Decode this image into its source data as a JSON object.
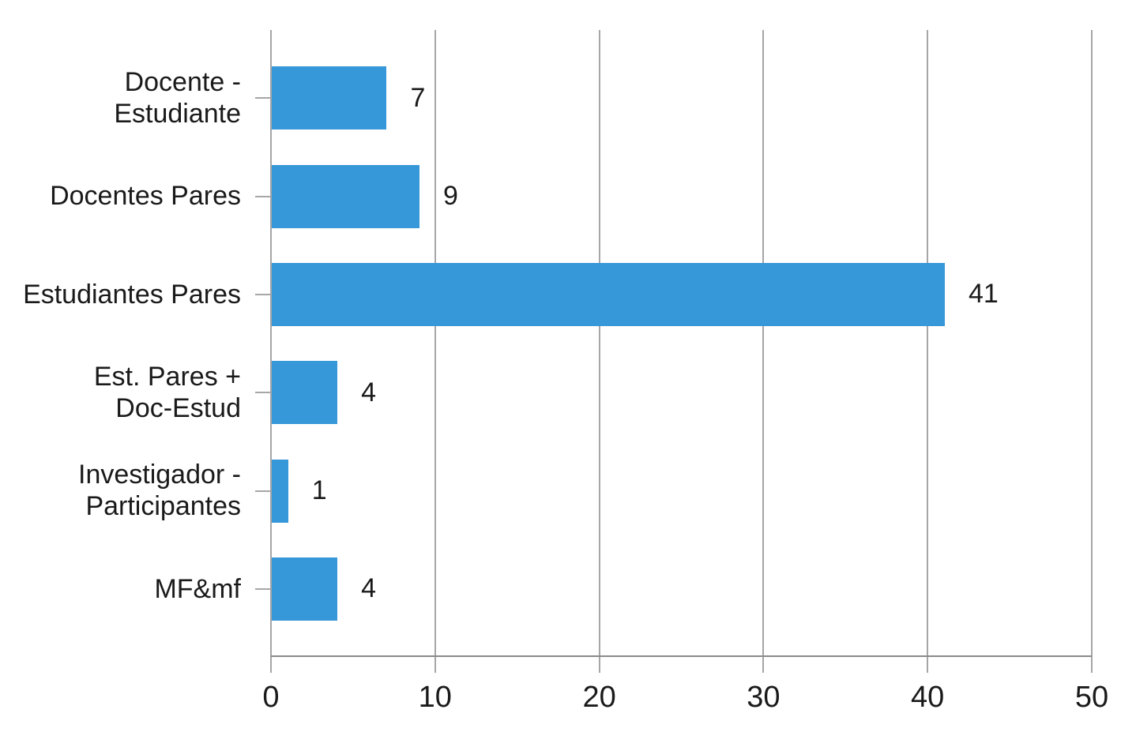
{
  "chart_data": {
    "type": "bar",
    "orientation": "horizontal",
    "title": "",
    "xlabel": "",
    "ylabel": "",
    "categories": [
      "Docente - Estudiante",
      "Docentes Pares",
      "Estudiantes Pares",
      "Est. Pares + Doc-Estud",
      "Investigador - Participantes",
      "MF&mf"
    ],
    "category_label_lines": [
      [
        "Docente -",
        "Estudiante"
      ],
      [
        "Docentes Pares"
      ],
      [
        "Estudiantes Pares"
      ],
      [
        "Est. Pares +",
        "Doc-Estud"
      ],
      [
        "Investigador -",
        "Participantes"
      ],
      [
        "MF&mf"
      ]
    ],
    "values": [
      7,
      9,
      41,
      4,
      1,
      4
    ],
    "data_labels": [
      "7",
      "9",
      "41",
      "4",
      "1",
      "4"
    ],
    "xlim": [
      0,
      50
    ],
    "x_ticks": [
      0,
      10,
      20,
      30,
      40,
      50
    ],
    "x_tick_labels": [
      "0",
      "10",
      "20",
      "30",
      "40",
      "50"
    ],
    "grid": "vertical gridlines on",
    "legend": "none",
    "colors": {
      "bar": "#3697d9",
      "gridline": "#a6a6a6",
      "axis": "#8a8a8a",
      "text": "#1a1a1a",
      "background": "#ffffff"
    }
  }
}
